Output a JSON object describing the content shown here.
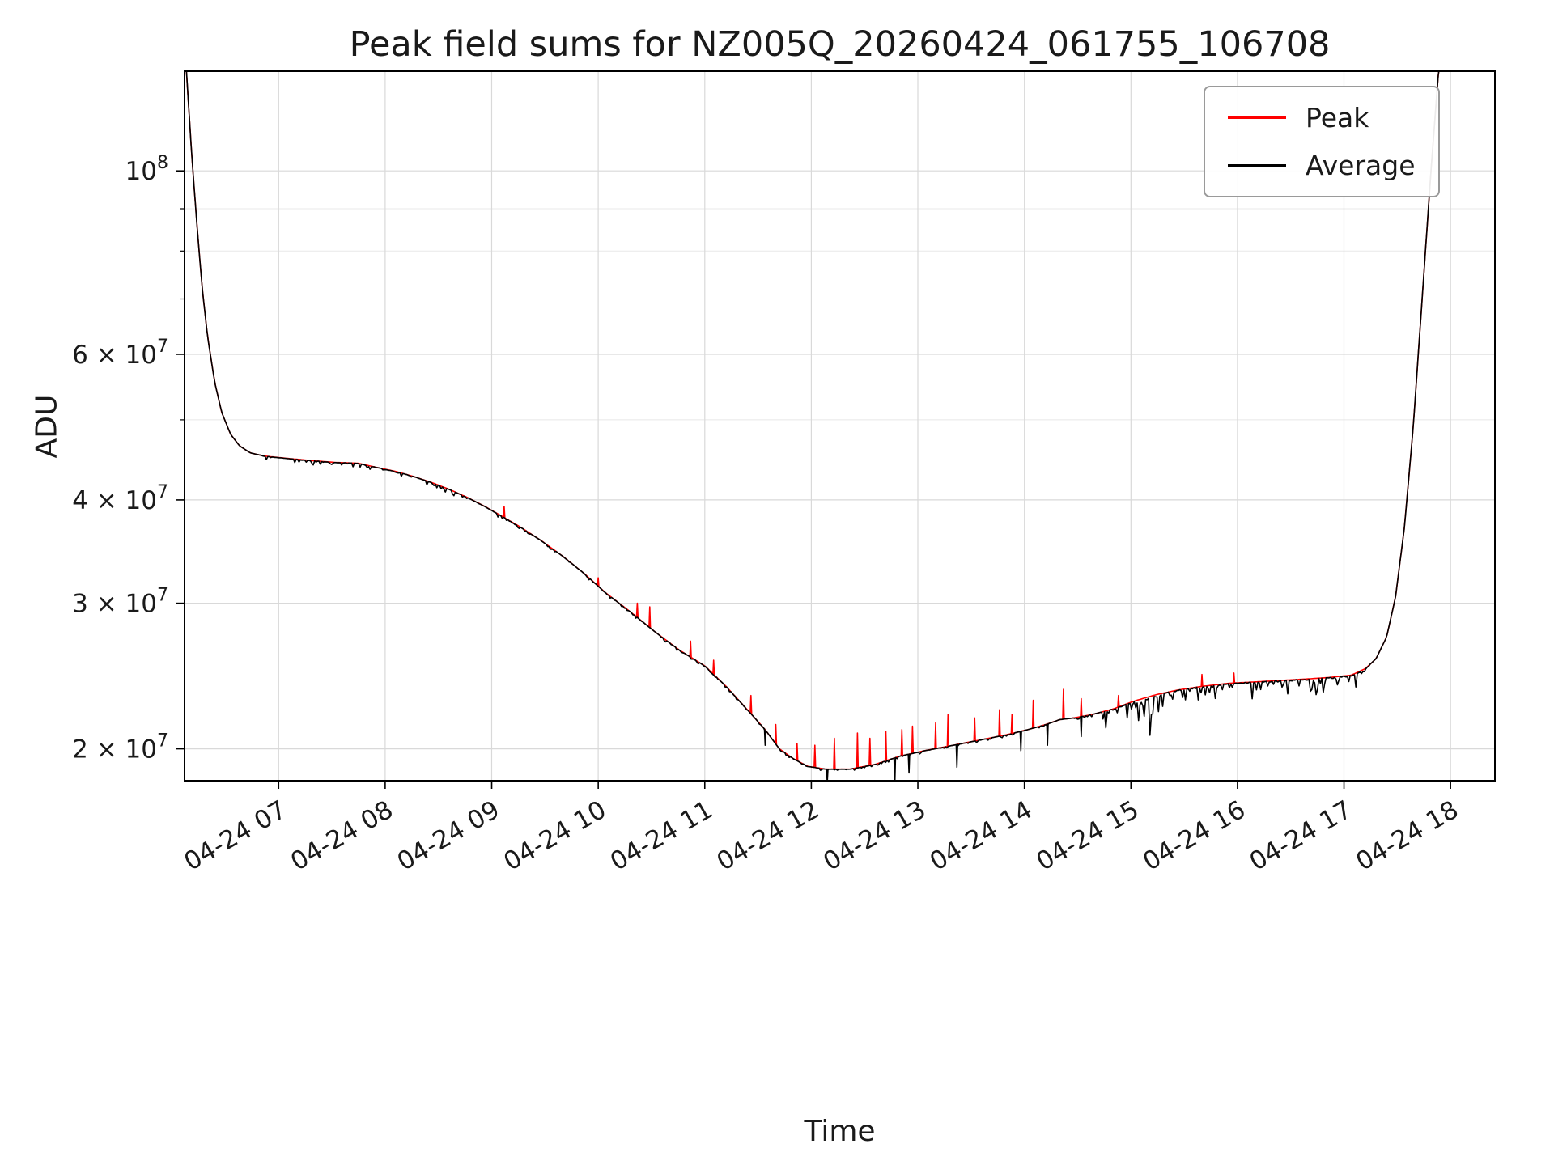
{
  "chart_data": {
    "type": "line",
    "title": "Peak field sums for NZ005Q_20260424_061755_106708",
    "xlabel": "Time",
    "ylabel": "ADU",
    "yscale": "log",
    "grid": true,
    "legend_position": "upper right",
    "ylim": [
      18300000.0,
      132000000.0
    ],
    "xlim_minutes": [
      367,
      1105
    ],
    "x_ticks": [
      {
        "minutes": 420,
        "label": "04-24 07"
      },
      {
        "minutes": 480,
        "label": "04-24 08"
      },
      {
        "minutes": 540,
        "label": "04-24 09"
      },
      {
        "minutes": 600,
        "label": "04-24 10"
      },
      {
        "minutes": 660,
        "label": "04-24 11"
      },
      {
        "minutes": 720,
        "label": "04-24 12"
      },
      {
        "minutes": 780,
        "label": "04-24 13"
      },
      {
        "minutes": 840,
        "label": "04-24 14"
      },
      {
        "minutes": 900,
        "label": "04-24 15"
      },
      {
        "minutes": 960,
        "label": "04-24 16"
      },
      {
        "minutes": 1020,
        "label": "04-24 17"
      },
      {
        "minutes": 1080,
        "label": "04-24 18"
      }
    ],
    "y_ticks": [
      {
        "value": 20000000.0,
        "base": "2 × 10",
        "exp": "7"
      },
      {
        "value": 30000000.0,
        "base": "3 × 10",
        "exp": "7"
      },
      {
        "value": 40000000.0,
        "base": "4 × 10",
        "exp": "7"
      },
      {
        "value": 60000000.0,
        "base": "6 × 10",
        "exp": "7"
      },
      {
        "value": 100000000.0,
        "base": "10",
        "exp": "8"
      }
    ],
    "y_minor_gridlines": [
      50000000.0,
      70000000.0,
      80000000.0,
      90000000.0
    ],
    "series": [
      {
        "name": "Peak",
        "color": "#ff0000"
      },
      {
        "name": "Average",
        "color": "#000000"
      }
    ],
    "baseline_points": [
      [
        367.5,
        138000000.0
      ],
      [
        371,
        105000000.0
      ],
      [
        374,
        86000000.0
      ],
      [
        377,
        72000000.0
      ],
      [
        380,
        63000000.0
      ],
      [
        384,
        55500000.0
      ],
      [
        388,
        51000000.0
      ],
      [
        393,
        48000000.0
      ],
      [
        398,
        46500000.0
      ],
      [
        404,
        45600000.0
      ],
      [
        412,
        45200000.0
      ],
      [
        425,
        44900000.0
      ],
      [
        440,
        44600000.0
      ],
      [
        452,
        44400000.0
      ],
      [
        465,
        44300000.0
      ],
      [
        475,
        43800000.0
      ],
      [
        486,
        43300000.0
      ],
      [
        496,
        42700000.0
      ],
      [
        506,
        42000000.0
      ],
      [
        516,
        41200000.0
      ],
      [
        526,
        40300000.0
      ],
      [
        536,
        39300000.0
      ],
      [
        546,
        38200000.0
      ],
      [
        556,
        37100000.0
      ],
      [
        568,
        35700000.0
      ],
      [
        580,
        34200000.0
      ],
      [
        592,
        32600000.0
      ],
      [
        604,
        30900000.0
      ],
      [
        618,
        29300000.0
      ],
      [
        632,
        27700000.0
      ],
      [
        646,
        26300000.0
      ],
      [
        660,
        25200000.0
      ],
      [
        672,
        23800000.0
      ],
      [
        684,
        22300000.0
      ],
      [
        694,
        21100000.0
      ],
      [
        702,
        20000000.0
      ],
      [
        710,
        19450000.0
      ],
      [
        718,
        19050000.0
      ],
      [
        728,
        18900000.0
      ],
      [
        742,
        18900000.0
      ],
      [
        756,
        19150000.0
      ],
      [
        770,
        19600000.0
      ],
      [
        784,
        19900000.0
      ],
      [
        800,
        20200000.0
      ],
      [
        815,
        20500000.0
      ],
      [
        830,
        20800000.0
      ],
      [
        842,
        21100000.0
      ],
      [
        852,
        21400000.0
      ],
      [
        860,
        21700000.0
      ],
      [
        868,
        21800000.0
      ],
      [
        878,
        22000000.0
      ],
      [
        890,
        22350000.0
      ],
      [
        902,
        22850000.0
      ],
      [
        914,
        23250000.0
      ],
      [
        926,
        23550000.0
      ],
      [
        940,
        23800000.0
      ],
      [
        955,
        24000000.0
      ],
      [
        970,
        24100000.0
      ],
      [
        985,
        24200000.0
      ],
      [
        1000,
        24300000.0
      ],
      [
        1012,
        24400000.0
      ],
      [
        1024,
        24550000.0
      ],
      [
        1032,
        25000000.0
      ],
      [
        1038,
        25700000.0
      ],
      [
        1044,
        27300000.0
      ],
      [
        1049,
        30500000.0
      ],
      [
        1054,
        37000000.0
      ],
      [
        1059,
        49000000.0
      ],
      [
        1064,
        70000000.0
      ],
      [
        1069,
        100000000.0
      ],
      [
        1073,
        130000000.0
      ],
      [
        1076,
        145000000.0
      ]
    ],
    "peak_spikes": [
      [
        547,
        39300000.0
      ],
      [
        600,
        32200000.0
      ],
      [
        622,
        30000000.0
      ],
      [
        629,
        29700000.0
      ],
      [
        652,
        27000000.0
      ],
      [
        665,
        25600000.0
      ],
      [
        686,
        23200000.0
      ],
      [
        700,
        21400000.0
      ],
      [
        712,
        20300000.0
      ],
      [
        722,
        20200000.0
      ],
      [
        733,
        20600000.0
      ],
      [
        746,
        20900000.0
      ],
      [
        753,
        20600000.0
      ],
      [
        762,
        21000000.0
      ],
      [
        771,
        21100000.0
      ],
      [
        777,
        21300000.0
      ],
      [
        790,
        21500000.0
      ],
      [
        797,
        22000000.0
      ],
      [
        812,
        21800000.0
      ],
      [
        826,
        22300000.0
      ],
      [
        833,
        22000000.0
      ],
      [
        845,
        22900000.0
      ],
      [
        862,
        23600000.0
      ],
      [
        872,
        23000000.0
      ],
      [
        893,
        23200000.0
      ],
      [
        940,
        24600000.0
      ],
      [
        958,
        24700000.0
      ]
    ],
    "average_dips": [
      [
        694,
        20200000.0
      ],
      [
        729,
        18200000.0
      ],
      [
        767,
        18000000.0
      ],
      [
        775,
        18700000.0
      ],
      [
        802,
        19000000.0
      ],
      [
        838,
        19900000.0
      ],
      [
        853,
        20200000.0
      ],
      [
        872,
        20700000.0
      ]
    ],
    "noise_windows": [
      {
        "t0": 410,
        "t1": 545,
        "amp": 0.012
      },
      {
        "t0": 545,
        "t1": 878,
        "amp": 0.006
      },
      {
        "t0": 884,
        "t1": 1034,
        "amp": 0.05
      },
      {
        "t0": 900,
        "t1": 917,
        "amp": 0.1
      }
    ]
  }
}
